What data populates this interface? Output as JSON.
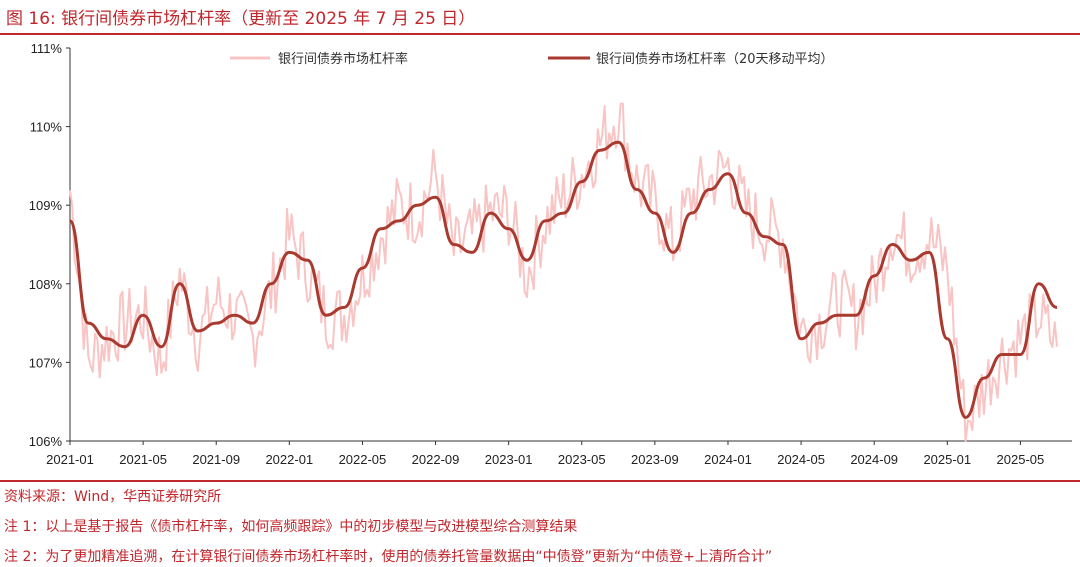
{
  "figure": {
    "title": "图 16:  银行间债券市场杠杆率（更新至 2025 年 7 月 25 日）"
  },
  "notes": {
    "source": "资料来源：Wind，华西证券研究所",
    "note1": "注 1：以上是基于报告《债市杠杆率，如何高频跟踪》中的初步模型与改进模型综合测算结果",
    "note2": "注 2：为了更加精准追溯，在计算银行间债券市场杠杆率时，使用的债券托管量数据由“中债登”更新为“中债登+上清所合计”"
  },
  "colors": {
    "accent": "#c0272d",
    "daily_series": "#f9c4c4",
    "ma_series": "#a93a30"
  },
  "chart_data": {
    "type": "line",
    "title": "",
    "xlabel": "",
    "ylabel": "",
    "ylim": [
      106,
      111
    ],
    "yticks": [
      "106%",
      "107%",
      "108%",
      "109%",
      "110%",
      "111%"
    ],
    "xticks": [
      "2021-01",
      "2021-05",
      "2021-09",
      "2022-01",
      "2022-05",
      "2022-09",
      "2023-01",
      "2023-05",
      "2023-09",
      "2024-01",
      "2024-05",
      "2024-09",
      "2025-01",
      "2025-05"
    ],
    "x_start": "2021-01",
    "x_end": "2025-07",
    "grid": false,
    "legend_position": "top",
    "series": [
      {
        "name": "银行间债券市场杠杆率",
        "style": "daily",
        "x": [
          "2021-01",
          "2021-02",
          "2021-03",
          "2021-04",
          "2021-05",
          "2021-06",
          "2021-07",
          "2021-08",
          "2021-09",
          "2021-10",
          "2021-11",
          "2021-12",
          "2022-01",
          "2022-02",
          "2022-03",
          "2022-04",
          "2022-05",
          "2022-06",
          "2022-07",
          "2022-08",
          "2022-09",
          "2022-10",
          "2022-11",
          "2022-12",
          "2023-01",
          "2023-02",
          "2023-03",
          "2023-04",
          "2023-05",
          "2023-06",
          "2023-07",
          "2023-08",
          "2023-09",
          "2023-10",
          "2023-11",
          "2023-12",
          "2024-01",
          "2024-02",
          "2024-03",
          "2024-04",
          "2024-05",
          "2024-06",
          "2024-07",
          "2024-08",
          "2024-09",
          "2024-10",
          "2024-11",
          "2024-12",
          "2025-01",
          "2025-02",
          "2025-03",
          "2025-04",
          "2025-05",
          "2025-06",
          "2025-07"
        ],
        "values": [
          109.2,
          107.0,
          107.3,
          107.5,
          107.6,
          107.0,
          108.1,
          107.3,
          107.8,
          107.6,
          107.3,
          107.9,
          108.6,
          108.2,
          107.6,
          107.6,
          108.1,
          108.6,
          109.0,
          108.9,
          109.4,
          108.4,
          108.6,
          108.9,
          108.9,
          108.1,
          108.8,
          109.1,
          109.4,
          109.8,
          110.2,
          109.3,
          109.0,
          108.5,
          109.1,
          109.3,
          109.5,
          108.9,
          108.7,
          108.6,
          107.4,
          107.5,
          107.8,
          107.6,
          108.0,
          108.7,
          108.4,
          108.6,
          108.2,
          106.2,
          106.7,
          107.1,
          107.3,
          107.6,
          107.2
        ]
      },
      {
        "name": "银行间债券市场杠杆率（20天移动平均）",
        "style": "ma20",
        "x": [
          "2021-01",
          "2021-02",
          "2021-03",
          "2021-04",
          "2021-05",
          "2021-06",
          "2021-07",
          "2021-08",
          "2021-09",
          "2021-10",
          "2021-11",
          "2021-12",
          "2022-01",
          "2022-02",
          "2022-03",
          "2022-04",
          "2022-05",
          "2022-06",
          "2022-07",
          "2022-08",
          "2022-09",
          "2022-10",
          "2022-11",
          "2022-12",
          "2023-01",
          "2023-02",
          "2023-03",
          "2023-04",
          "2023-05",
          "2023-06",
          "2023-07",
          "2023-08",
          "2023-09",
          "2023-10",
          "2023-11",
          "2023-12",
          "2024-01",
          "2024-02",
          "2024-03",
          "2024-04",
          "2024-05",
          "2024-06",
          "2024-07",
          "2024-08",
          "2024-09",
          "2024-10",
          "2024-11",
          "2024-12",
          "2025-01",
          "2025-02",
          "2025-03",
          "2025-04",
          "2025-05",
          "2025-06",
          "2025-07"
        ],
        "values": [
          108.8,
          107.5,
          107.3,
          107.2,
          107.6,
          107.2,
          108.0,
          107.4,
          107.5,
          107.6,
          107.5,
          108.0,
          108.4,
          108.3,
          107.6,
          107.7,
          108.2,
          108.7,
          108.8,
          109.0,
          109.1,
          108.5,
          108.4,
          108.9,
          108.7,
          108.3,
          108.8,
          108.9,
          109.3,
          109.7,
          109.8,
          109.2,
          108.9,
          108.4,
          108.9,
          109.2,
          109.4,
          108.9,
          108.6,
          108.5,
          107.3,
          107.5,
          107.6,
          107.6,
          108.1,
          108.5,
          108.3,
          108.4,
          107.3,
          106.3,
          106.8,
          107.1,
          107.1,
          108.0,
          107.7
        ]
      }
    ]
  }
}
